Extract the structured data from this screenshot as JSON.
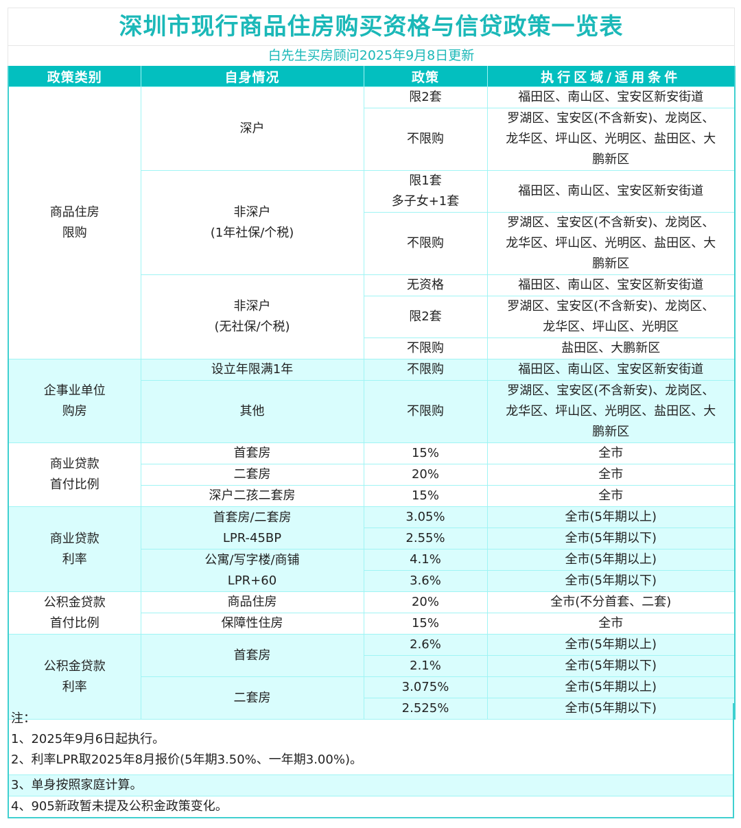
{
  "header": {
    "title": "深圳市现行商品住房购买资格与信贷政策一览表",
    "subtitle": "白先生买房顾问2025年9月8日更新"
  },
  "colors": {
    "accent": "#03bfbf",
    "title_text": "#1bb8b8",
    "row_tint": "#d9fdfd",
    "grid_line": "#9ff4f4"
  },
  "table": {
    "columns": [
      "政策类别",
      "自身情况",
      "政策",
      "执行区域/适用条件"
    ],
    "sections": [
      {
        "category": [
          "商品住房",
          "限购"
        ],
        "groups": [
          {
            "situation": [
              "深户"
            ],
            "rows": [
              {
                "policy": [
                  "限2套"
                ],
                "area": [
                  "福田区、南山区、宝安区新安街道"
                ]
              },
              {
                "policy": [
                  "不限购"
                ],
                "area": [
                  "罗湖区、宝安区(不含新安)、龙岗区、",
                  "龙华区、坪山区、光明区、盐田区、大",
                  "鹏新区"
                ]
              }
            ]
          },
          {
            "situation": [
              "非深户",
              "(1年社保/个税)"
            ],
            "rows": [
              {
                "policy": [
                  "限1套",
                  "多子女+1套"
                ],
                "area": [
                  "福田区、南山区、宝安区新安街道"
                ]
              },
              {
                "policy": [
                  "不限购"
                ],
                "area": [
                  "罗湖区、宝安区(不含新安)、龙岗区、",
                  "龙华区、坪山区、光明区、盐田区、大",
                  "鹏新区"
                ]
              }
            ]
          },
          {
            "situation": [
              "非深户",
              "(无社保/个税)"
            ],
            "rows": [
              {
                "policy": [
                  "无资格"
                ],
                "area": [
                  "福田区、南山区、宝安区新安街道"
                ]
              },
              {
                "policy": [
                  "限2套"
                ],
                "area": [
                  "罗湖区、宝安区(不含新安)、龙岗区、",
                  "龙华区、坪山区、光明区"
                ]
              },
              {
                "policy": [
                  "不限购"
                ],
                "area": [
                  "盐田区、大鹏新区"
                ]
              }
            ]
          }
        ]
      },
      {
        "category": [
          "企事业单位",
          "购房"
        ],
        "groups": [
          {
            "situation": [
              "设立年限满1年"
            ],
            "rows": [
              {
                "policy": [
                  "不限购"
                ],
                "area": [
                  "福田区、南山区、宝安区新安街道"
                ]
              }
            ]
          },
          {
            "situation": [
              "其他"
            ],
            "rows": [
              {
                "policy": [
                  "不限购"
                ],
                "area": [
                  "罗湖区、宝安区(不含新安)、龙岗区、",
                  "龙华区、坪山区、光明区、盐田区、大",
                  "鹏新区"
                ]
              }
            ]
          }
        ]
      },
      {
        "category": [
          "商业贷款",
          "首付比例"
        ],
        "groups": [
          {
            "situation": [
              "首套房"
            ],
            "rows": [
              {
                "policy": [
                  "15%"
                ],
                "area": [
                  "全市"
                ]
              }
            ]
          },
          {
            "situation": [
              "二套房"
            ],
            "rows": [
              {
                "policy": [
                  "20%"
                ],
                "area": [
                  "全市"
                ]
              }
            ]
          },
          {
            "situation": [
              "深户二孩二套房"
            ],
            "rows": [
              {
                "policy": [
                  "15%"
                ],
                "area": [
                  "全市"
                ]
              }
            ]
          }
        ]
      },
      {
        "category": [
          "商业贷款",
          "利率"
        ],
        "groups": [
          {
            "situation": [
              "首套房/二套房",
              "LPR-45BP"
            ],
            "rows": [
              {
                "policy": [
                  "3.05%"
                ],
                "area": [
                  "全市(5年期以上)"
                ]
              },
              {
                "policy": [
                  "2.55%"
                ],
                "area": [
                  "全市(5年期以下)"
                ]
              }
            ]
          },
          {
            "situation": [
              "公寓/写字楼/商铺",
              "LPR+60"
            ],
            "rows": [
              {
                "policy": [
                  "4.1%"
                ],
                "area": [
                  "全市(5年期以上)"
                ]
              },
              {
                "policy": [
                  "3.6%"
                ],
                "area": [
                  "全市(5年期以下)"
                ]
              }
            ]
          }
        ]
      },
      {
        "category": [
          "公积金贷款",
          "首付比例"
        ],
        "groups": [
          {
            "situation": [
              "商品住房"
            ],
            "rows": [
              {
                "policy": [
                  "20%"
                ],
                "area": [
                  "全市(不分首套、二套)"
                ]
              }
            ]
          },
          {
            "situation": [
              "保障性住房"
            ],
            "rows": [
              {
                "policy": [
                  "15%"
                ],
                "area": [
                  "全市"
                ]
              }
            ]
          }
        ]
      },
      {
        "category": [
          "公积金贷款",
          "利率"
        ],
        "groups": [
          {
            "situation": [
              "首套房"
            ],
            "rows": [
              {
                "policy": [
                  "2.6%"
                ],
                "area": [
                  "全市(5年期以上)"
                ]
              },
              {
                "policy": [
                  "2.1%"
                ],
                "area": [
                  "全市(5年期以下)"
                ]
              }
            ]
          },
          {
            "situation": [
              "二套房"
            ],
            "rows": [
              {
                "policy": [
                  "3.075%"
                ],
                "area": [
                  "全市(5年期以上)"
                ]
              },
              {
                "policy": [
                  "2.525%"
                ],
                "area": [
                  "全市(5年期以下)"
                ]
              }
            ]
          }
        ]
      }
    ]
  },
  "notes": {
    "heading": "注：",
    "items": [
      "1、2025年9月6日起执行。",
      "2、利率LPR取2025年8月报价(5年期3.50%、一年期3.00%)。",
      "3、单身按照家庭计算。",
      "4、905新政暂未提及公积金政策变化。"
    ]
  }
}
